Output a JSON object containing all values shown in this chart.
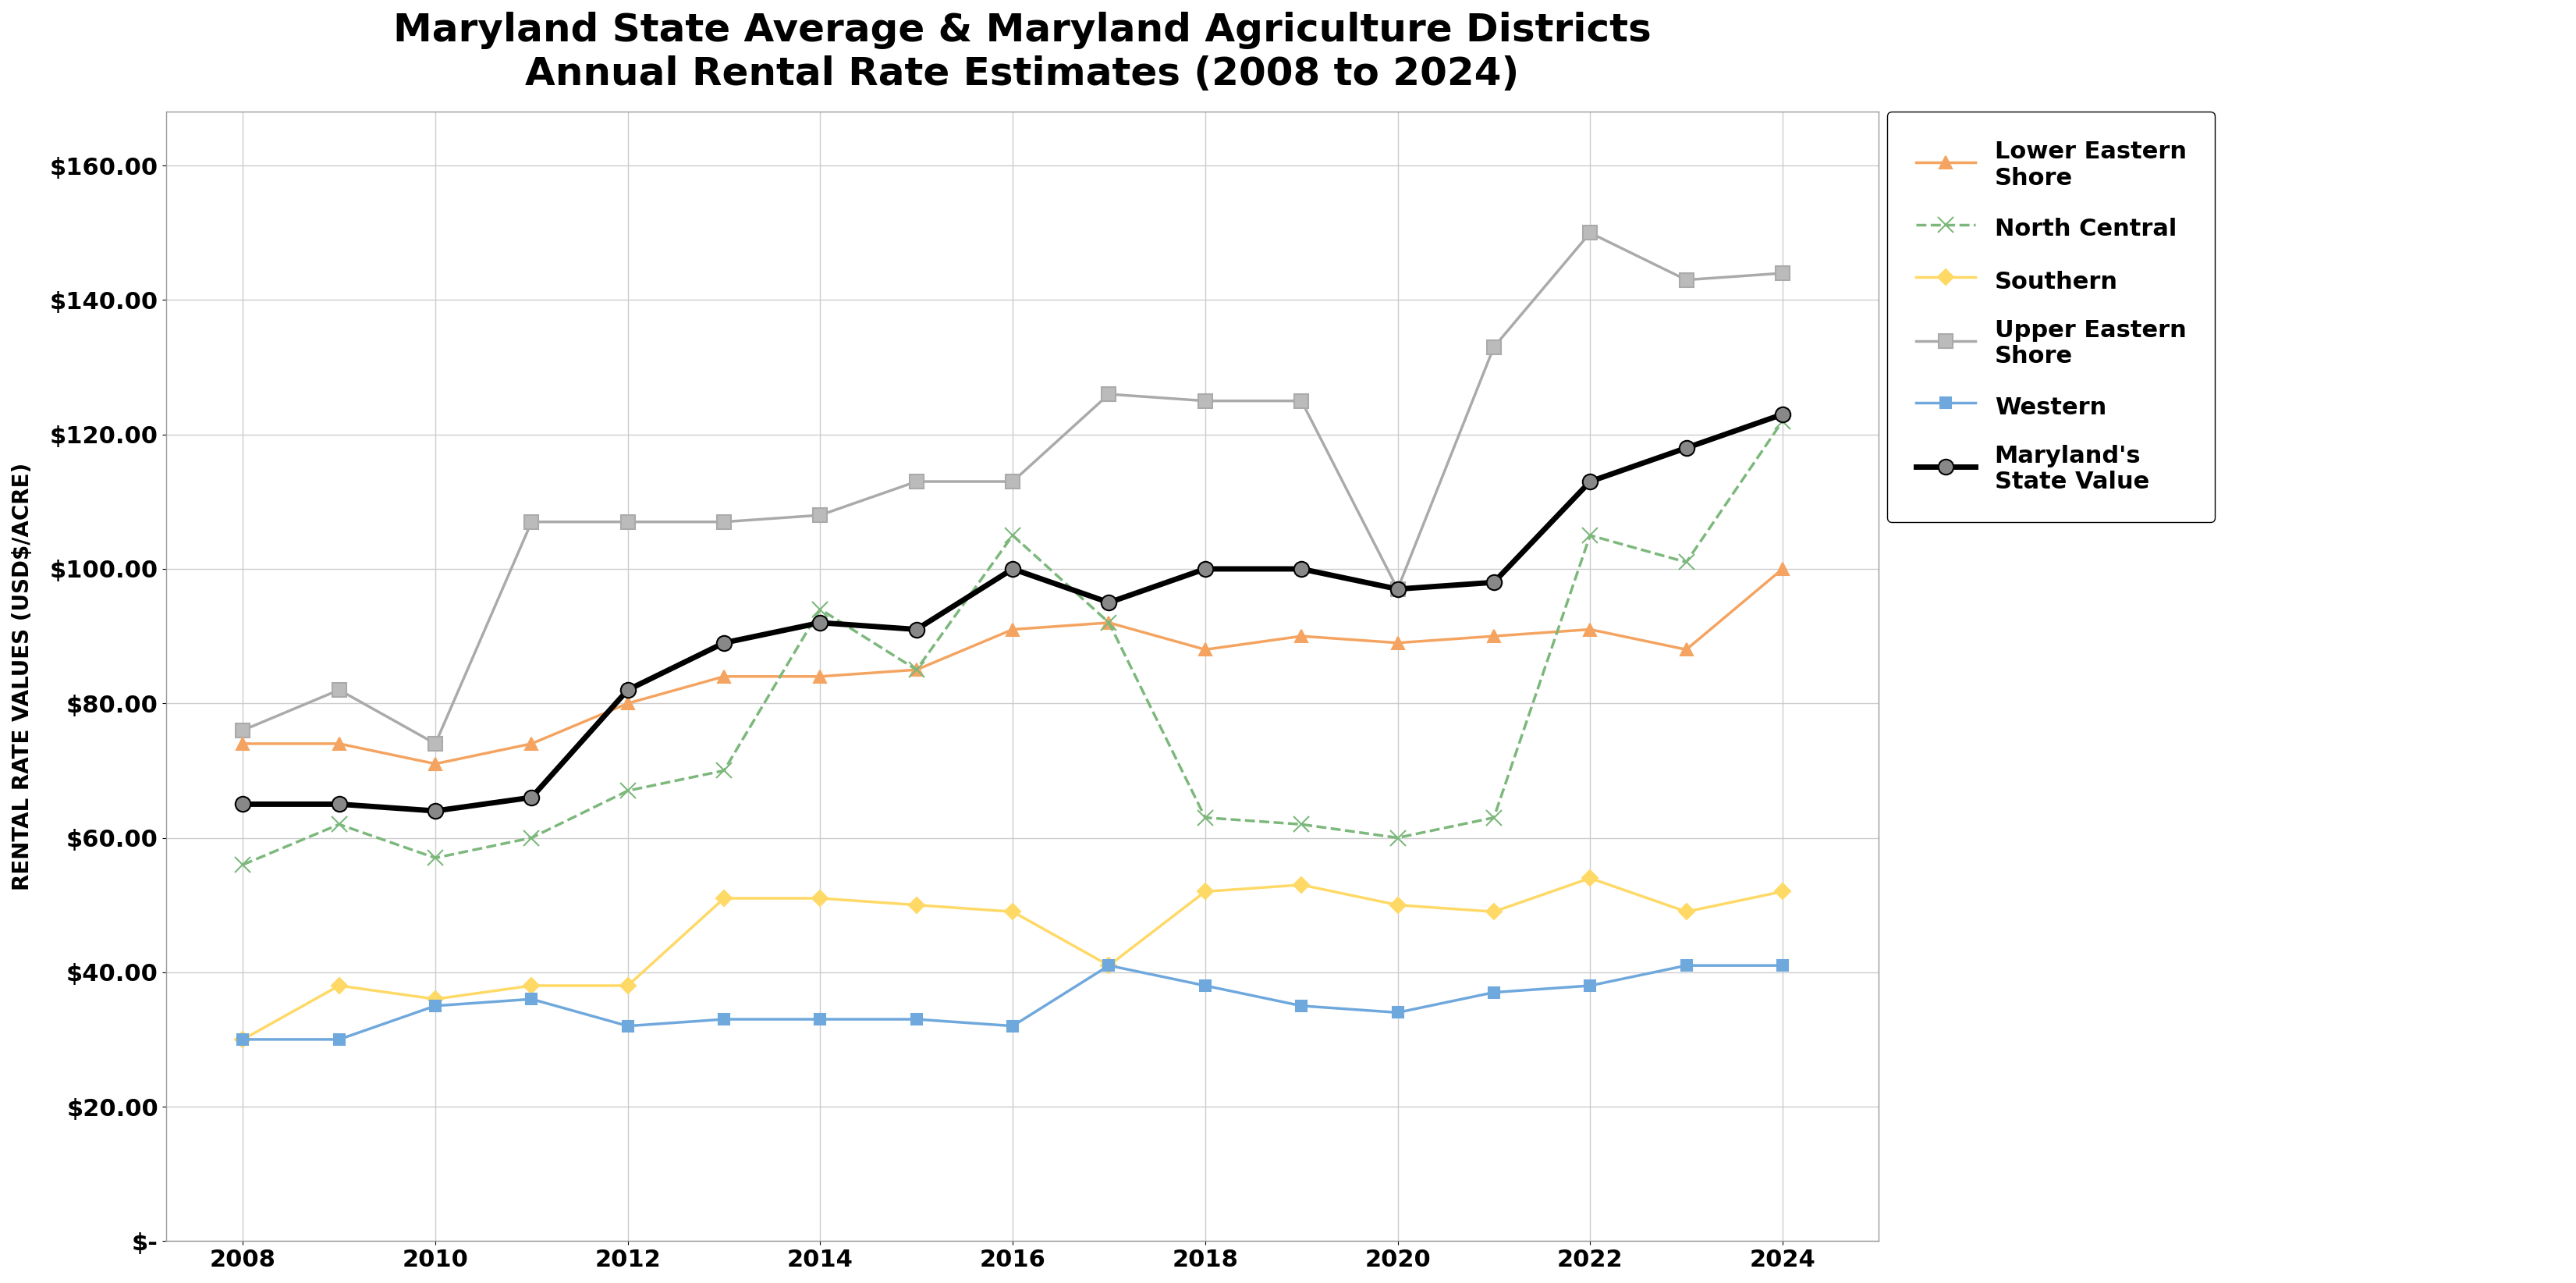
{
  "title": "Maryland State Average & Maryland Agriculture Districts\nAnnual Rental Rate Estimates (2008 to 2024)",
  "xlabel": "",
  "ylabel": "RENTAL RATE VALUES (USD$/ACRE)",
  "years": [
    2008,
    2009,
    2010,
    2011,
    2012,
    2013,
    2014,
    2015,
    2016,
    2017,
    2018,
    2019,
    2020,
    2021,
    2022,
    2023,
    2024
  ],
  "series": {
    "Lower Eastern\nShore": {
      "values": [
        74,
        74,
        71,
        74,
        80,
        84,
        84,
        85,
        91,
        92,
        88,
        90,
        89,
        90,
        91,
        88,
        100
      ],
      "color": "#F4A460",
      "marker": "^",
      "linestyle": "-",
      "linewidth": 2.5,
      "markersize": 12
    },
    "North Central": {
      "values": [
        56,
        62,
        57,
        60,
        67,
        70,
        94,
        85,
        105,
        92,
        63,
        62,
        60,
        63,
        105,
        101,
        122
      ],
      "color": "#7CB87C",
      "marker": "x",
      "linestyle": "--",
      "linewidth": 2.5,
      "markersize": 14
    },
    "Southern": {
      "values": [
        30,
        38,
        36,
        38,
        38,
        51,
        51,
        50,
        49,
        41,
        52,
        53,
        50,
        49,
        54,
        49,
        52
      ],
      "color": "#FFD966",
      "marker": "D",
      "linestyle": "-",
      "linewidth": 2.5,
      "markersize": 10
    },
    "Upper Eastern\nShore": {
      "values": [
        76,
        82,
        74,
        107,
        107,
        107,
        108,
        113,
        113,
        126,
        125,
        125,
        97,
        133,
        150,
        143,
        144
      ],
      "color": "#AAAAAA",
      "marker": "s",
      "linestyle": "-",
      "linewidth": 2.5,
      "markersize": 13
    },
    "Western": {
      "values": [
        30,
        30,
        35,
        36,
        32,
        33,
        33,
        33,
        32,
        41,
        38,
        35,
        34,
        37,
        38,
        41,
        41
      ],
      "color": "#6FA8DC",
      "marker": "s",
      "linestyle": "-",
      "linewidth": 2.5,
      "markersize": 10
    },
    "Maryland's\nState Value": {
      "values": [
        65,
        65,
        64,
        66,
        82,
        89,
        92,
        91,
        100,
        95,
        100,
        100,
        97,
        98,
        113,
        118,
        123
      ],
      "color": "#000000",
      "marker": "o",
      "linestyle": "-",
      "linewidth": 5,
      "markersize": 14
    }
  },
  "ylim": [
    0,
    168
  ],
  "yticks": [
    0,
    20,
    40,
    60,
    80,
    100,
    120,
    140,
    160
  ],
  "ytick_labels": [
    "$-",
    "$20.00",
    "$40.00",
    "$60.00",
    "$80.00",
    "$100.00",
    "$120.00",
    "$140.00",
    "$160.00"
  ],
  "xticks": [
    2008,
    2010,
    2012,
    2014,
    2016,
    2018,
    2020,
    2022,
    2024
  ],
  "background_color": "#ffffff",
  "grid_color": "#cccccc",
  "title_fontsize": 36,
  "label_fontsize": 20,
  "tick_fontsize": 22,
  "legend_fontsize": 22
}
